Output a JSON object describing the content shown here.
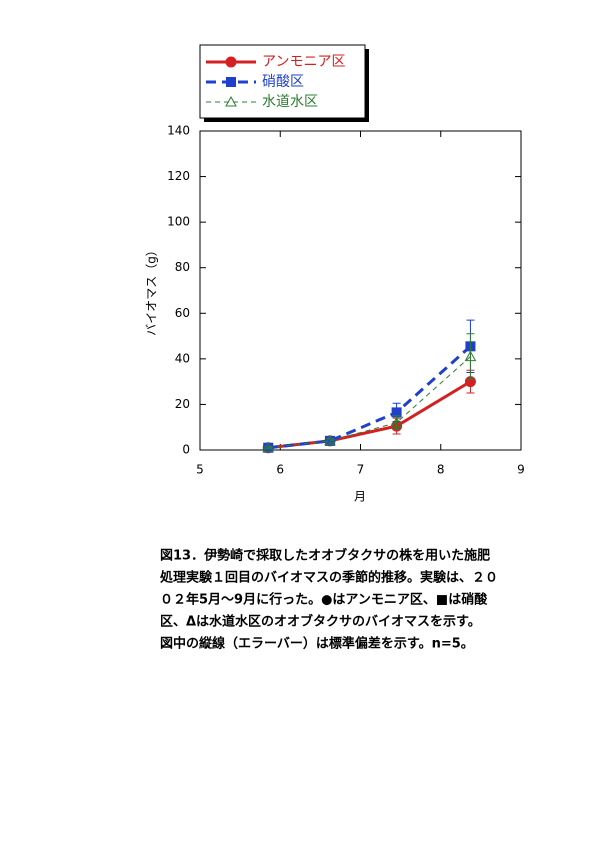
{
  "chart_data": {
    "type": "line",
    "xlabel": "月",
    "ylabel": "バイオマス（g）",
    "x": [
      5.85,
      6.62,
      7.45,
      8.37
    ],
    "series": [
      {
        "name": "アンモニア区",
        "color": "#d42020",
        "marker": "circle",
        "dash": "solid",
        "values": [
          1,
          4,
          10.5,
          30
        ],
        "errors": [
          0.5,
          1,
          3.5,
          5
        ]
      },
      {
        "name": "硝酸区",
        "color": "#1f3fcf",
        "marker": "square",
        "dash": "dashed",
        "values": [
          1,
          4,
          16.5,
          45.5
        ],
        "errors": [
          0.5,
          1,
          4,
          11.5
        ]
      },
      {
        "name": "水道水区",
        "color": "#2e7d32",
        "marker": "triangle",
        "dash": "thin-dashed",
        "values": [
          1,
          4,
          12,
          41
        ],
        "errors": [
          0.5,
          1,
          3,
          10
        ]
      }
    ],
    "xlim": [
      5,
      9
    ],
    "xticks": [
      5,
      6,
      7,
      8,
      9
    ],
    "ylim": [
      0,
      140
    ],
    "yticks": [
      0,
      20,
      40,
      60,
      80,
      100,
      120,
      140
    ],
    "grid": false,
    "legend": "top-left"
  },
  "caption": [
    "図13．伊勢崎で採取したオオブタクサの株を用いた施肥",
    "処理実験１回目のバイオマスの季節的推移。実験は、２０",
    "０２年5月～9月に行った。●はアンモニア区、■は硝酸",
    "区、Δは水道水区のオオブタクサのバイオマスを示す。",
    "図中の縦線（エラーバー）は標準偏差を示す。n=5。"
  ]
}
